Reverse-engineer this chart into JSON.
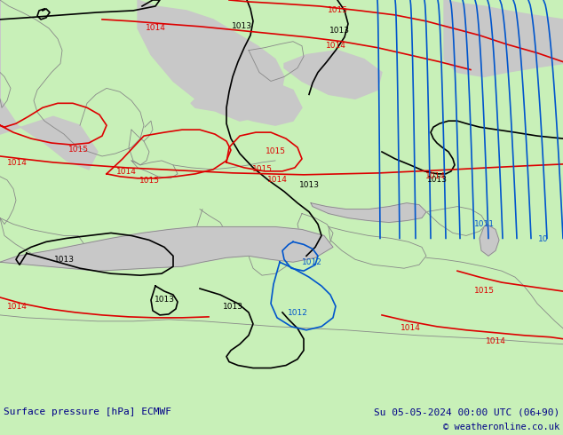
{
  "title_left": "Surface pressure [hPa] ECMWF",
  "title_right": "Su 05-05-2024 00:00 UTC (06+90)",
  "copyright": "© weatheronline.co.uk",
  "land_green": "#c8f0b8",
  "sea_gray": "#c8c8c8",
  "coast_color": "#888888",
  "black_color": "#000000",
  "red_color": "#dd0000",
  "blue_color": "#0055cc",
  "bottom_bg": "#c8f0b8",
  "bottom_text": "#000088",
  "fig_width": 6.34,
  "fig_height": 4.9,
  "dpi": 100
}
